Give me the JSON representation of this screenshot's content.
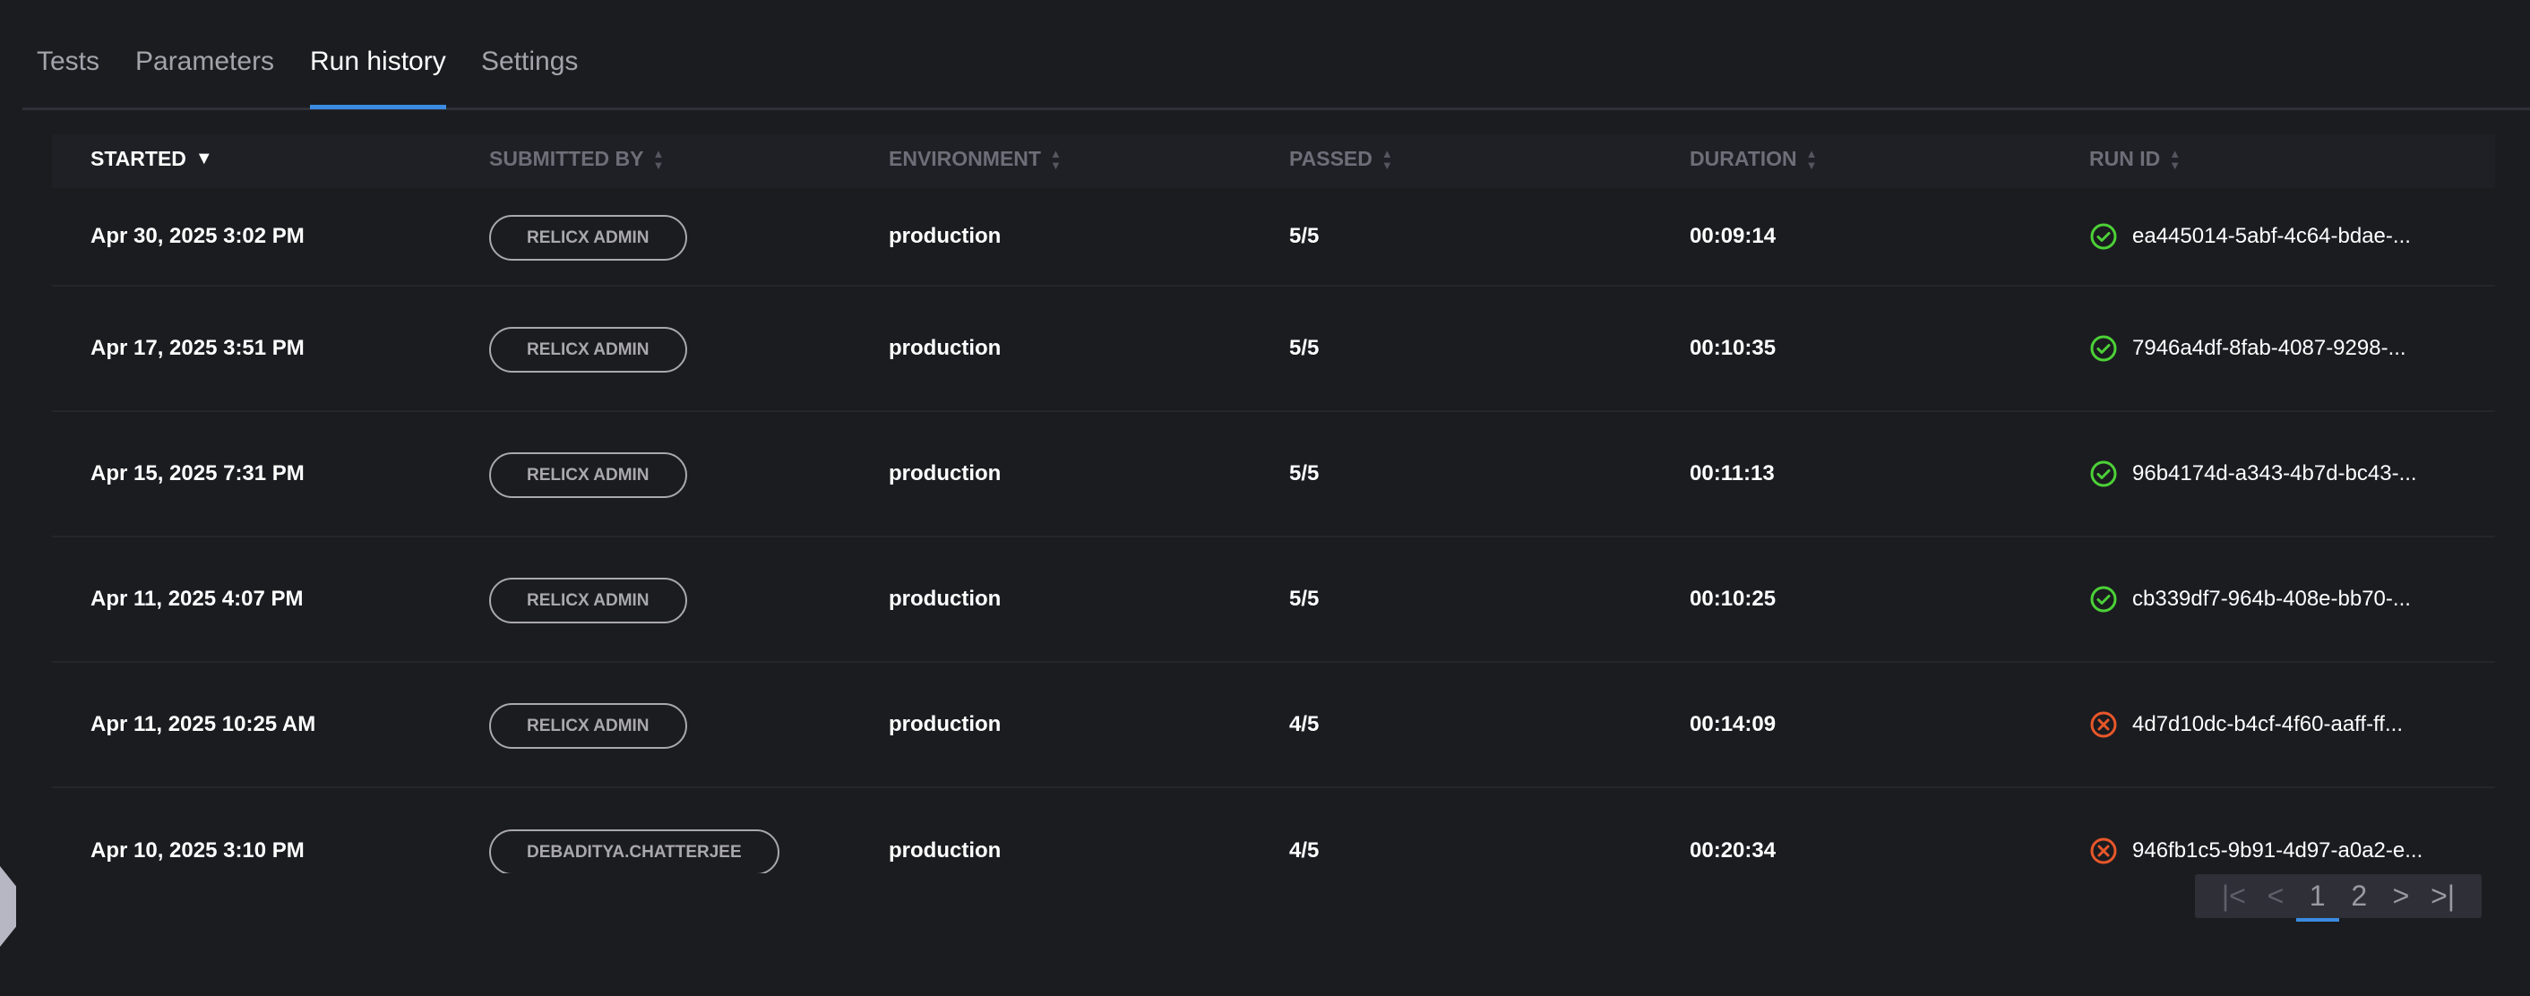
{
  "tabs": [
    {
      "label": "Tests"
    },
    {
      "label": "Parameters"
    },
    {
      "label": "Run history",
      "active": true
    },
    {
      "label": "Settings"
    }
  ],
  "columns": [
    {
      "label": "STARTED",
      "sort": "descending"
    },
    {
      "label": "SUBMITTED BY"
    },
    {
      "label": "ENVIRONMENT"
    },
    {
      "label": "PASSED"
    },
    {
      "label": "DURATION"
    },
    {
      "label": "RUN ID"
    }
  ],
  "rows": [
    {
      "started": "Apr 30, 2025 3:02 PM",
      "submitted_by": "RELICX ADMIN",
      "environment": "production",
      "passed": "5/5",
      "duration": "00:09:14",
      "run_id": "ea445014-5abf-4c64-bdae-...",
      "status": "success"
    },
    {
      "started": "Apr 17, 2025 3:51 PM",
      "submitted_by": "RELICX ADMIN",
      "environment": "production",
      "passed": "5/5",
      "duration": "00:10:35",
      "run_id": "7946a4df-8fab-4087-9298-...",
      "status": "success"
    },
    {
      "started": "Apr 15, 2025 7:31 PM",
      "submitted_by": "RELICX ADMIN",
      "environment": "production",
      "passed": "5/5",
      "duration": "00:11:13",
      "run_id": "96b4174d-a343-4b7d-bc43-...",
      "status": "success"
    },
    {
      "started": "Apr 11, 2025 4:07 PM",
      "submitted_by": "RELICX ADMIN",
      "environment": "production",
      "passed": "5/5",
      "duration": "00:10:25",
      "run_id": "cb339df7-964b-408e-bb70-...",
      "status": "success"
    },
    {
      "started": "Apr 11, 2025 10:25 AM",
      "submitted_by": "RELICX ADMIN",
      "environment": "production",
      "passed": "4/5",
      "duration": "00:14:09",
      "run_id": "4d7d10dc-b4cf-4f60-aaff-ff...",
      "status": "failed"
    },
    {
      "started": "Apr 10, 2025 3:10 PM",
      "submitted_by": "DEBADITYA.CHATTERJEE",
      "environment": "production",
      "passed": "4/5",
      "duration": "00:20:34",
      "run_id": "946fb1c5-9b91-4d97-a0a2-e...",
      "status": "failed"
    }
  ],
  "status_colors": {
    "success": "#4cd137",
    "failed": "#e8572a"
  },
  "pagination": {
    "first": "|<",
    "prev": "<",
    "pages": [
      "1",
      "2"
    ],
    "current": "1",
    "next": ">",
    "last": ">|"
  }
}
